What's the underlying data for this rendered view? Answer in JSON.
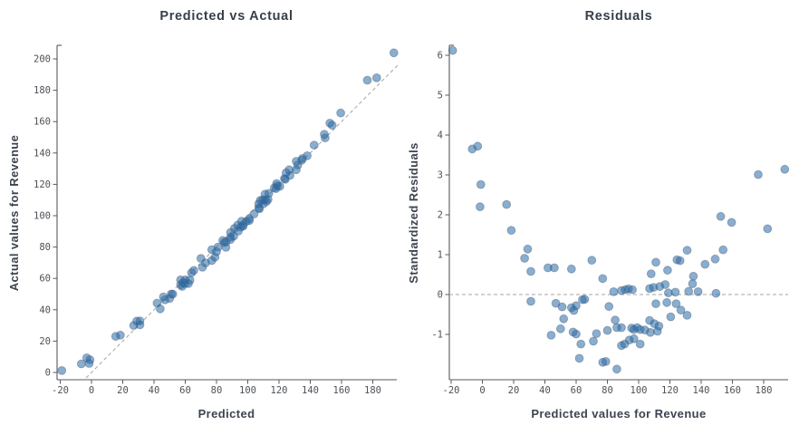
{
  "figure": {
    "background": "#ffffff",
    "description": "Two side-by-side scatter plots: predicted vs actual values and standardized residuals for a Revenue model"
  },
  "style": {
    "marker_fill": "#2a6ba8",
    "marker_opacity": 0.55,
    "marker_stroke": "#48607a",
    "axis_color": "#55595e",
    "tick_label_color": "#4d5156",
    "title_color": "#36404c",
    "reference_line_color": "#a5a5a5",
    "reference_line_style": "dashed"
  },
  "chart_data": [
    {
      "type": "scatter",
      "title": "Predicted vs Actual",
      "xlabel": "Predicted",
      "ylabel": "Actual values for Revenue",
      "xlim": [
        -27,
        197
      ],
      "ylim": [
        -5,
        208
      ],
      "xticks": [
        -20,
        0,
        20,
        40,
        60,
        80,
        100,
        120,
        140,
        160,
        180
      ],
      "yticks": [
        0,
        20,
        40,
        60,
        80,
        100,
        120,
        140,
        160,
        180,
        200
      ],
      "grid": false,
      "legend": "none",
      "reference_line": "y = x (dashed)",
      "points": [
        [
          -19,
          1.2
        ],
        [
          -6.5,
          5.5
        ],
        [
          -3,
          9.3
        ],
        [
          -1,
          8.1
        ],
        [
          -1.5,
          5.8
        ],
        [
          15.5,
          23.0
        ],
        [
          18.5,
          23.8
        ],
        [
          27,
          30.0
        ],
        [
          29,
          32.8
        ],
        [
          31,
          32.9
        ],
        [
          31,
          30.4
        ],
        [
          42,
          44.2
        ],
        [
          46,
          48.2
        ],
        [
          57,
          59.1
        ],
        [
          70,
          72.8
        ],
        [
          77,
          78.3
        ],
        [
          44,
          40.6
        ],
        [
          47,
          46.3
        ],
        [
          51,
          50.0
        ],
        [
          52,
          50.0
        ],
        [
          50,
          47.2
        ],
        [
          57,
          55.9
        ],
        [
          58.5,
          57.2
        ],
        [
          60,
          59.1
        ],
        [
          58,
          54.9
        ],
        [
          60,
          56.7
        ],
        [
          63,
          58.9
        ],
        [
          62,
          56.7
        ],
        [
          64,
          63.6
        ],
        [
          65.5,
          65.1
        ],
        [
          71,
          67.1
        ],
        [
          73,
          69.8
        ],
        [
          77,
          71.4
        ],
        [
          79,
          73.5
        ],
        [
          86,
          79.8
        ],
        [
          81,
          80.0
        ],
        [
          80,
          77.0
        ],
        [
          85,
          82.9
        ],
        [
          86,
          83.3
        ],
        [
          89,
          86.3
        ],
        [
          89,
          84.8
        ],
        [
          94,
          90.2
        ],
        [
          95.5,
          92.7
        ],
        [
          97,
          94.1
        ],
        [
          99,
          96.3
        ],
        [
          101,
          98.1
        ],
        [
          104,
          101.1
        ],
        [
          107.5,
          104.4
        ],
        [
          112,
          109.0
        ],
        [
          110,
          107.6
        ],
        [
          97,
          93.3
        ],
        [
          101,
          96.9
        ],
        [
          91,
          86.9
        ],
        [
          84,
          84.2
        ],
        [
          89,
          89.3
        ],
        [
          91.5,
          91.9
        ],
        [
          93.5,
          94.0
        ],
        [
          96,
          96.4
        ],
        [
          107,
          107.5
        ],
        [
          109.5,
          110.1
        ],
        [
          113.5,
          114.2
        ],
        [
          117,
          117.8
        ],
        [
          119,
          119.1
        ],
        [
          123.5,
          123.7
        ],
        [
          132,
          132.3
        ],
        [
          138,
          138.2
        ],
        [
          149.5,
          149.6
        ],
        [
          111,
          110.2
        ],
        [
          118,
          117.3
        ],
        [
          124,
          123.2
        ],
        [
          127,
          125.7
        ],
        [
          131,
          129.3
        ],
        [
          120.5,
          118.7
        ],
        [
          107,
          104.9
        ],
        [
          113,
          110.4
        ],
        [
          135,
          136.5
        ],
        [
          134.5,
          135.4
        ],
        [
          108,
          109.7
        ],
        [
          118.5,
          120.5
        ],
        [
          111,
          113.7
        ],
        [
          126.5,
          129.3
        ],
        [
          124.5,
          127.4
        ],
        [
          142.5,
          145.0
        ],
        [
          149,
          151.9
        ],
        [
          131,
          134.7
        ],
        [
          154,
          157.7
        ],
        [
          152.5,
          159.0
        ],
        [
          159.5,
          165.5
        ],
        [
          182.5,
          187.9
        ],
        [
          176.5,
          186.4
        ],
        [
          193.5,
          203.9
        ]
      ]
    },
    {
      "type": "scatter",
      "title": "Residuals",
      "xlabel": "Predicted values for Revenue",
      "ylabel": "Standardized Residuals",
      "xlim": [
        -27,
        197
      ],
      "ylim": [
        -2.05,
        6.25
      ],
      "xticks": [
        -20,
        0,
        20,
        40,
        60,
        80,
        100,
        120,
        140,
        160,
        180
      ],
      "yticks": [
        -1,
        0,
        1,
        2,
        3,
        4,
        5,
        6
      ],
      "grid": false,
      "legend": "none",
      "reference_line": "y = 0 (dashed)",
      "points": [
        [
          -19,
          6.12
        ],
        [
          -6.5,
          3.65
        ],
        [
          -3,
          3.72
        ],
        [
          -1,
          2.76
        ],
        [
          -1.5,
          2.2
        ],
        [
          15.5,
          2.26
        ],
        [
          18.5,
          1.61
        ],
        [
          27,
          0.91
        ],
        [
          29,
          1.14
        ],
        [
          31,
          0.58
        ],
        [
          31,
          -0.17
        ],
        [
          42,
          0.67
        ],
        [
          46,
          0.67
        ],
        [
          57,
          0.64
        ],
        [
          70,
          0.86
        ],
        [
          77,
          0.4
        ],
        [
          44,
          -1.02
        ],
        [
          47,
          -0.22
        ],
        [
          51,
          -0.31
        ],
        [
          52,
          -0.61
        ],
        [
          50,
          -0.86
        ],
        [
          57,
          -0.33
        ],
        [
          58.5,
          -0.4
        ],
        [
          60,
          -0.28
        ],
        [
          58,
          -0.94
        ],
        [
          60,
          -0.99
        ],
        [
          63,
          -1.24
        ],
        [
          62,
          -1.6
        ],
        [
          64,
          -0.13
        ],
        [
          65.5,
          -0.12
        ],
        [
          71,
          -1.17
        ],
        [
          73,
          -0.98
        ],
        [
          77,
          -1.7
        ],
        [
          79,
          -1.68
        ],
        [
          86,
          -1.87
        ],
        [
          81,
          -0.3
        ],
        [
          80,
          -0.9
        ],
        [
          85,
          -0.64
        ],
        [
          86,
          -0.83
        ],
        [
          89,
          -0.83
        ],
        [
          89,
          -1.28
        ],
        [
          94,
          -1.14
        ],
        [
          95.5,
          -0.84
        ],
        [
          97,
          -0.88
        ],
        [
          99,
          -0.83
        ],
        [
          101,
          -0.88
        ],
        [
          104,
          -0.89
        ],
        [
          107.5,
          -0.95
        ],
        [
          112,
          -0.92
        ],
        [
          110,
          -0.73
        ],
        [
          97,
          -1.11
        ],
        [
          101,
          -1.24
        ],
        [
          91,
          -1.24
        ],
        [
          84,
          0.07
        ],
        [
          89,
          0.1
        ],
        [
          91.5,
          0.12
        ],
        [
          93.5,
          0.14
        ],
        [
          96,
          0.12
        ],
        [
          107,
          0.15
        ],
        [
          109.5,
          0.18
        ],
        [
          113.5,
          0.2
        ],
        [
          117,
          0.25
        ],
        [
          119,
          0.04
        ],
        [
          123.5,
          0.06
        ],
        [
          132,
          0.08
        ],
        [
          138,
          0.07
        ],
        [
          149.5,
          0.03
        ],
        [
          111,
          -0.23
        ],
        [
          118,
          -0.2
        ],
        [
          124,
          -0.23
        ],
        [
          127,
          -0.39
        ],
        [
          131,
          -0.52
        ],
        [
          120.5,
          -0.56
        ],
        [
          107,
          -0.65
        ],
        [
          113,
          -0.79
        ],
        [
          135,
          0.46
        ],
        [
          134.5,
          0.27
        ],
        [
          108,
          0.52
        ],
        [
          118.5,
          0.61
        ],
        [
          111,
          0.81
        ],
        [
          126.5,
          0.85
        ],
        [
          124.5,
          0.87
        ],
        [
          142.5,
          0.76
        ],
        [
          149,
          0.89
        ],
        [
          131,
          1.11
        ],
        [
          154,
          1.12
        ],
        [
          152.5,
          1.96
        ],
        [
          159.5,
          1.81
        ],
        [
          182.5,
          1.65
        ],
        [
          176.5,
          3.01
        ],
        [
          193.5,
          3.14
        ]
      ]
    }
  ]
}
